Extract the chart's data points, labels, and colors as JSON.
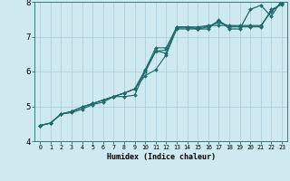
{
  "xlabel": "Humidex (Indice chaleur)",
  "xlim": [
    -0.5,
    23.5
  ],
  "ylim": [
    4,
    8
  ],
  "background_color": "#ceeaf0",
  "grid_color": "#aacdd8",
  "line_color": "#1e6b6b",
  "xticks": [
    0,
    1,
    2,
    3,
    4,
    5,
    6,
    7,
    8,
    9,
    10,
    11,
    12,
    13,
    14,
    15,
    16,
    17,
    18,
    19,
    20,
    21,
    22,
    23
  ],
  "yticks": [
    4,
    5,
    6,
    7,
    8
  ],
  "series": [
    [
      4.45,
      4.52,
      4.78,
      4.82,
      4.92,
      5.05,
      5.12,
      5.28,
      5.28,
      5.32,
      6.02,
      6.6,
      6.52,
      7.28,
      7.28,
      7.22,
      7.22,
      7.48,
      7.22,
      7.22,
      7.78,
      7.9,
      7.58,
      8.05
    ],
    [
      4.45,
      4.52,
      4.78,
      4.85,
      4.98,
      5.08,
      5.18,
      5.28,
      5.38,
      5.5,
      5.88,
      6.05,
      6.48,
      7.22,
      7.22,
      7.22,
      7.28,
      7.45,
      7.28,
      7.28,
      7.28,
      7.28,
      7.78,
      7.92
    ],
    [
      4.45,
      4.52,
      4.78,
      4.85,
      4.98,
      5.08,
      5.18,
      5.28,
      5.38,
      5.5,
      6.05,
      6.68,
      6.68,
      7.28,
      7.28,
      7.28,
      7.32,
      7.32,
      7.32,
      7.32,
      7.32,
      7.32,
      7.72,
      7.98
    ],
    [
      4.45,
      4.52,
      4.78,
      4.85,
      4.98,
      5.08,
      5.18,
      5.28,
      5.38,
      5.5,
      5.98,
      6.58,
      6.62,
      7.25,
      7.25,
      7.25,
      7.3,
      7.4,
      7.3,
      7.3,
      7.3,
      7.3,
      7.75,
      7.95
    ]
  ]
}
